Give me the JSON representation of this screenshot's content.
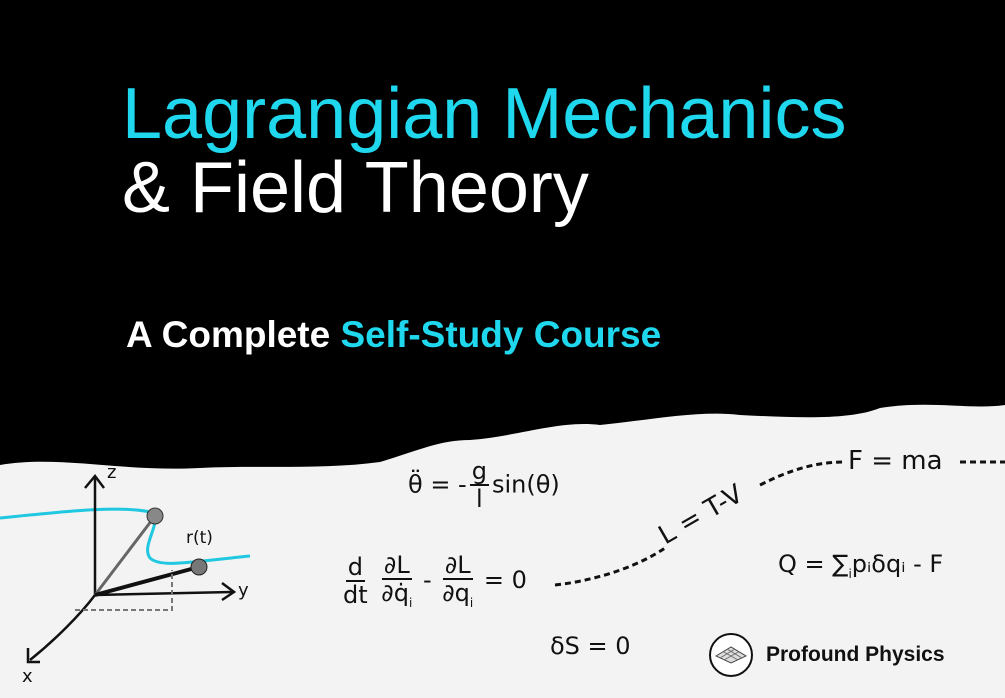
{
  "title": {
    "line1": "Lagrangian Mechanics",
    "line2": "& Field Theory"
  },
  "subtitle": {
    "prefix": "A Complete",
    "highlight": "Self-Study Course"
  },
  "equations": {
    "pendulum": {
      "lhs": "θ̈ = -",
      "num": "g",
      "den": "l",
      "rhs": "sin(θ)"
    },
    "euler_lagrange": {
      "d_num": "d",
      "d_den": "dt",
      "l1_num": "∂L",
      "l1_den": "∂q̇",
      "minus": "-",
      "l2_num": "∂L",
      "l2_den": "∂q",
      "sub": "i",
      "rhs": "= 0"
    },
    "lagrangian": "L = T-V",
    "newton": "F = ma",
    "charge": {
      "lhs": "Q = ∑",
      "sub": "i",
      "rhs": "pᵢδqᵢ - F"
    },
    "action": "δS = 0"
  },
  "diagram": {
    "axes": [
      "x",
      "y",
      "z"
    ],
    "vector_label": "r(t)",
    "curve_color": "#1fc8e0"
  },
  "brand": {
    "name": "Profound Physics",
    "icon": "grid-surface-logo"
  },
  "colors": {
    "accent": "#1fd8ee",
    "background_top": "#000000",
    "background_bottom": "#f4f4f4"
  }
}
